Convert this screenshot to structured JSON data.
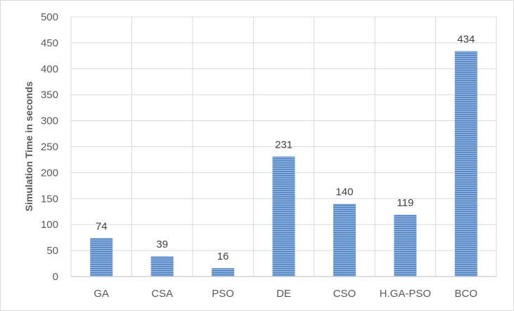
{
  "chart_data": {
    "type": "bar",
    "title": "",
    "xlabel": "",
    "ylabel": "Simulation Time in seconds",
    "categories": [
      "GA",
      "CSA",
      "PSO",
      "DE",
      "CSO",
      "H.GA-PSO",
      "BCO"
    ],
    "values": [
      74,
      39,
      16,
      231,
      140,
      119,
      434
    ],
    "ylim": [
      0,
      500
    ],
    "yticks": [
      0,
      50,
      100,
      150,
      200,
      250,
      300,
      350,
      400,
      450,
      500
    ],
    "grid": true,
    "data_labels": true,
    "legend": "none",
    "colors": {
      "bar_fill": "#8fb4e3",
      "bar_stripe": "#4a7ebb",
      "grid": "#d9d9d9",
      "axis": "#bfbfbf"
    }
  }
}
